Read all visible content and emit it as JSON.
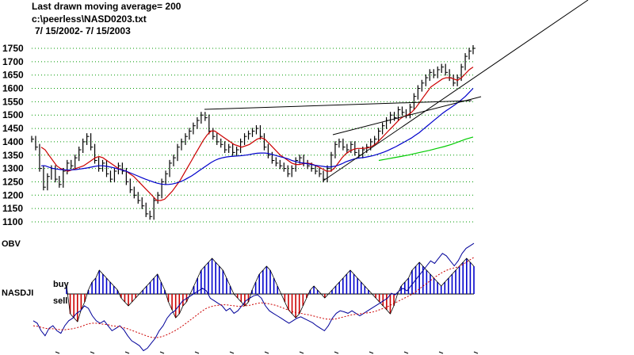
{
  "header": {
    "line1": "Last drawn moving average= 200",
    "line2": "c:\\peerless\\NASD0203.txt",
    "line3": " 7/ 15/2002- 7/ 15/2003"
  },
  "labels": {
    "obv": "OBV",
    "nasdji": "NASDJI",
    "buy": "buy",
    "sell": "sell"
  },
  "colors": {
    "price_bars": "#000000",
    "ma_21": "#cc0000",
    "ma_50": "#0000cc",
    "ma_200": "#00cc00",
    "grid": "#009900",
    "trendline": "#000000",
    "obv_line": "#000099",
    "buy_bars": "#0000cc",
    "sell_bars": "#cc0000"
  },
  "chart_data": [
    {
      "type": "line",
      "ylim": [
        1100,
        1750
      ],
      "yticks": [
        1100,
        1150,
        1200,
        1250,
        1300,
        1350,
        1400,
        1450,
        1500,
        1550,
        1600,
        1650,
        1700,
        1750
      ],
      "grid": true,
      "x_range": [
        "7/15/2002",
        "7/15/2003"
      ],
      "price": [
        1410,
        1380,
        1300,
        1230,
        1270,
        1300,
        1260,
        1240,
        1290,
        1320,
        1310,
        1340,
        1370,
        1400,
        1420,
        1380,
        1330,
        1300,
        1320,
        1280,
        1260,
        1290,
        1310,
        1290,
        1250,
        1220,
        1200,
        1180,
        1160,
        1130,
        1120,
        1180,
        1200,
        1250,
        1280,
        1320,
        1340,
        1380,
        1400,
        1420,
        1440,
        1460,
        1480,
        1500,
        1490,
        1440,
        1420,
        1400,
        1390,
        1370,
        1380,
        1360,
        1370,
        1400,
        1420,
        1430,
        1440,
        1450,
        1420,
        1380,
        1350,
        1330,
        1320,
        1310,
        1300,
        1280,
        1300,
        1330,
        1340,
        1320,
        1310,
        1300,
        1290,
        1280,
        1260,
        1300,
        1350,
        1390,
        1400,
        1380,
        1370,
        1390,
        1360,
        1350,
        1370,
        1380,
        1400,
        1410,
        1440,
        1460,
        1480,
        1500,
        1490,
        1520,
        1510,
        1500,
        1530,
        1570,
        1600,
        1620,
        1640,
        1660,
        1650,
        1670,
        1680,
        1660,
        1640,
        1620,
        1640,
        1680,
        1720,
        1740,
        1750
      ],
      "series": [
        {
          "values": [
            1380,
            1370,
            1350,
            1330,
            1310,
            1300,
            1295,
            1290,
            1295,
            1300,
            1305,
            1310,
            1320,
            1330,
            1340,
            1345,
            1340,
            1330,
            1320,
            1310,
            1300,
            1295,
            1290,
            1280,
            1270,
            1255,
            1240,
            1225,
            1210,
            1195,
            1180,
            1180,
            1185,
            1200,
            1215,
            1235,
            1255,
            1280,
            1305,
            1330,
            1355,
            1380,
            1405,
            1425,
            1440,
            1440,
            1430,
            1420,
            1410,
            1400,
            1390,
            1385,
            1380,
            1385,
            1390,
            1400,
            1410,
            1415,
            1410,
            1395,
            1380,
            1365,
            1350,
            1340,
            1330,
            1320,
            1315,
            1315,
            1318,
            1320,
            1318,
            1312,
            1305,
            1298,
            1290,
            1290,
            1300,
            1320,
            1340,
            1355,
            1365,
            1372,
            1375,
            1375,
            1376,
            1378,
            1385,
            1395,
            1410,
            1425,
            1440,
            1455,
            1470,
            1485,
            1495,
            1500,
            1510,
            1525,
            1545,
            1565,
            1585,
            1605,
            1615,
            1625,
            1635,
            1640,
            1640,
            1635,
            1630,
            1640,
            1655,
            1670,
            1680
          ]
        },
        {
          "values": [
            1310,
            1310,
            1305,
            1300,
            1298,
            1296,
            1295,
            1294,
            1295,
            1296,
            1298,
            1300,
            1302,
            1305,
            1308,
            1310,
            1310,
            1308,
            1305,
            1302,
            1298,
            1294,
            1290,
            1284,
            1278,
            1272,
            1266,
            1260,
            1255,
            1250,
            1245,
            1242,
            1240,
            1240,
            1242,
            1245,
            1250,
            1256,
            1264,
            1272,
            1282,
            1292,
            1302,
            1312,
            1322,
            1330,
            1336,
            1340,
            1343,
            1345,
            1346,
            1347,
            1348,
            1350,
            1352,
            1355,
            1357,
            1358,
            1358,
            1356,
            1352,
            1348,
            1344,
            1340,
            1336,
            1330,
            1326,
            1323,
            1320,
            1318,
            1315,
            1312,
            1310,
            1308,
            1306,
            1306,
            1308,
            1312,
            1318,
            1325,
            1330,
            1335,
            1338,
            1340,
            1342,
            1345,
            1348,
            1352,
            1357,
            1362,
            1368,
            1375,
            1382,
            1390,
            1398,
            1406,
            1414,
            1424,
            1434,
            1446,
            1458,
            1470,
            1482,
            1494,
            1506,
            1516,
            1526,
            1536,
            1546,
            1558,
            1570,
            1585,
            1600
          ]
        },
        {
          "values": [
            1330,
            1335,
            1340,
            1345,
            1350,
            1356,
            1362,
            1368,
            1375,
            1382,
            1390,
            1400,
            1410,
            1418
          ]
        }
      ]
    },
    {
      "type": "line",
      "series": [
        {
          "values": [
            40,
            35,
            20,
            10,
            25,
            30,
            20,
            15,
            30,
            40,
            45,
            55,
            60,
            70,
            65,
            50,
            40,
            35,
            40,
            30,
            20,
            25,
            30,
            22,
            10,
            0,
            -5,
            -10,
            -20,
            -15,
            -5,
            5,
            20,
            30,
            45,
            55,
            60,
            70,
            80,
            85,
            90,
            95,
            100,
            105,
            100,
            85,
            80,
            75,
            70,
            60,
            65,
            55,
            60,
            70,
            80,
            85,
            90,
            92,
            85,
            70,
            60,
            55,
            50,
            45,
            40,
            35,
            40,
            45,
            48,
            44,
            40,
            36,
            30,
            25,
            20,
            30,
            45,
            55,
            60,
            58,
            55,
            60,
            55,
            50,
            55,
            60,
            65,
            70,
            75,
            80,
            85,
            95,
            92,
            100,
            105,
            100,
            110,
            120,
            130,
            140,
            150,
            160,
            155,
            165,
            175,
            170,
            160,
            150,
            160,
            175,
            185,
            190,
            195
          ]
        },
        {
          "values": [
            30,
            29,
            27,
            25,
            24,
            24,
            23,
            22,
            22,
            23,
            24,
            26,
            28,
            31,
            34,
            35,
            35,
            34,
            33,
            32,
            30,
            29,
            28,
            26,
            24,
            21,
            18,
            15,
            12,
            9,
            7,
            6,
            7,
            9,
            12,
            16,
            20,
            25,
            30,
            36,
            42,
            48,
            54,
            60,
            65,
            68,
            70,
            71,
            72,
            72,
            71,
            70,
            69,
            69,
            70,
            71,
            73,
            75,
            76,
            75,
            74,
            72,
            70,
            67,
            64,
            61,
            58,
            56,
            55,
            53,
            52,
            50,
            48,
            46,
            44,
            43,
            43,
            44,
            46,
            48,
            50,
            52,
            53,
            54,
            55,
            56,
            57,
            59,
            62,
            65,
            68,
            72,
            76,
            80,
            84,
            88,
            92,
            97,
            103,
            109,
            115,
            121,
            127,
            132,
            137,
            141,
            144,
            146,
            148,
            152,
            157,
            162,
            167
          ]
        }
      ],
      "bars": [
        10,
        -25,
        -30,
        -35,
        -20,
        -10,
        5,
        15,
        20,
        30,
        25,
        20,
        15,
        10,
        5,
        -5,
        -10,
        -15,
        -10,
        -5,
        0,
        5,
        10,
        15,
        20,
        25,
        15,
        5,
        -10,
        -20,
        -30,
        -25,
        -15,
        -10,
        0,
        10,
        20,
        30,
        35,
        40,
        45,
        40,
        35,
        30,
        20,
        10,
        0,
        -5,
        -10,
        -15,
        -10,
        5,
        15,
        25,
        30,
        35,
        30,
        20,
        10,
        0,
        -10,
        -20,
        -25,
        -30,
        -25,
        -15,
        -5,
        5,
        10,
        5,
        0,
        -5,
        0,
        5,
        10,
        15,
        20,
        25,
        30,
        25,
        20,
        15,
        10,
        5,
        0,
        -5,
        -10,
        -15,
        -20,
        -25,
        -15,
        0,
        10,
        15,
        20,
        30,
        35,
        40,
        35,
        30,
        25,
        20,
        15,
        10,
        15,
        20,
        25,
        30,
        35,
        40,
        45,
        40,
        35
      ]
    }
  ]
}
